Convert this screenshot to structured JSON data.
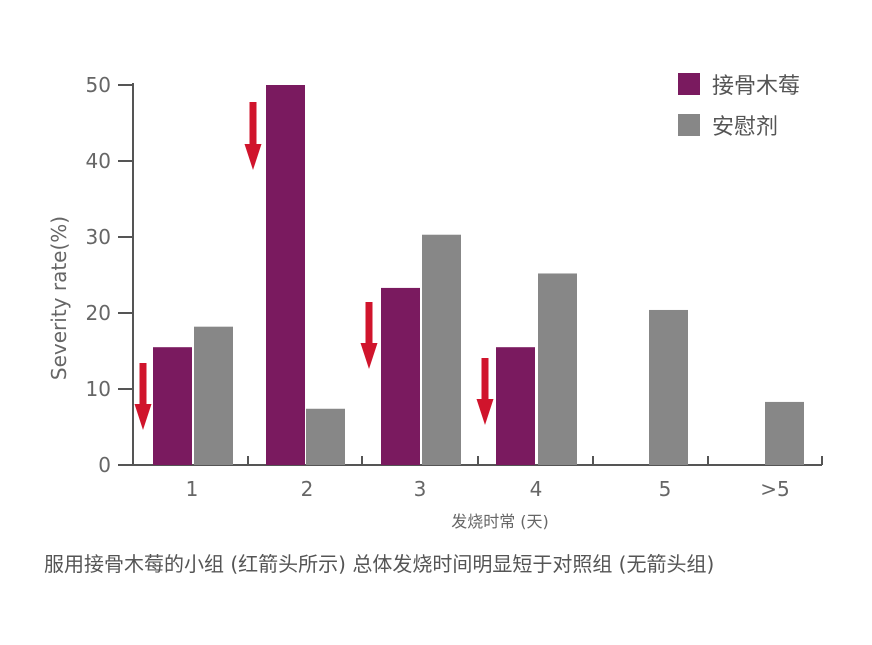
{
  "chart_data": {
    "type": "bar",
    "categories": [
      "1",
      "2",
      "3",
      "4",
      "5",
      ">5"
    ],
    "series": [
      {
        "name": "接骨木莓",
        "color": "#7a1a5f",
        "values": [
          15.5,
          50,
          23.3,
          15.5,
          null,
          null
        ]
      },
      {
        "name": "安慰剂",
        "color": "#878787",
        "values": [
          18.2,
          7.4,
          30.3,
          25.2,
          20.4,
          8.3
        ]
      }
    ],
    "arrow_categories": [
      "1",
      "2",
      "3",
      "4"
    ],
    "arrow_color": "#d0142c",
    "title": "",
    "xlabel": "发烧时常 (天)",
    "ylabel": "Severity rate(%)",
    "ylim": [
      0,
      50
    ],
    "yticks": [
      "0",
      "10",
      "20",
      "30",
      "40",
      "50"
    ],
    "legend_position": "top-right"
  },
  "caption": "服用接骨木莓的小组 (红箭头所示) 总体发烧时间明显短于对照组 (无箭头组)"
}
